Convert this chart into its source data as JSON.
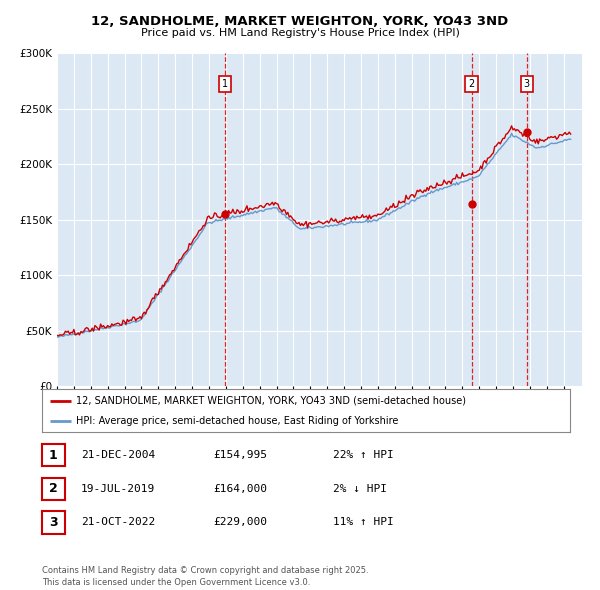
{
  "title": "12, SANDHOLME, MARKET WEIGHTON, YORK, YO43 3ND",
  "subtitle": "Price paid vs. HM Land Registry's House Price Index (HPI)",
  "background_color": "#dce9f5",
  "plot_bg_color": "#dce9f5",
  "legend_line1": "12, SANDHOLME, MARKET WEIGHTON, YORK, YO43 3ND (semi-detached house)",
  "legend_line2": "HPI: Average price, semi-detached house, East Riding of Yorkshire",
  "sale_dates": [
    "2004-12-21",
    "2019-07-19",
    "2022-10-21"
  ],
  "sale_prices": [
    154995,
    164000,
    229000
  ],
  "sale_labels": [
    "1",
    "2",
    "3"
  ],
  "sale_info": [
    [
      "1",
      "21-DEC-2004",
      "£154,995",
      "22% ↑ HPI"
    ],
    [
      "2",
      "19-JUL-2019",
      "£164,000",
      "2% ↓ HPI"
    ],
    [
      "3",
      "21-OCT-2022",
      "£229,000",
      "11% ↑ HPI"
    ]
  ],
  "footer": "Contains HM Land Registry data © Crown copyright and database right 2025.\nThis data is licensed under the Open Government Licence v3.0.",
  "red_line_color": "#cc0000",
  "blue_line_color": "#6699cc",
  "ylim": [
    0,
    300000
  ],
  "yticks": [
    0,
    50000,
    100000,
    150000,
    200000,
    250000,
    300000
  ],
  "year_start": 1995,
  "year_end": 2026
}
